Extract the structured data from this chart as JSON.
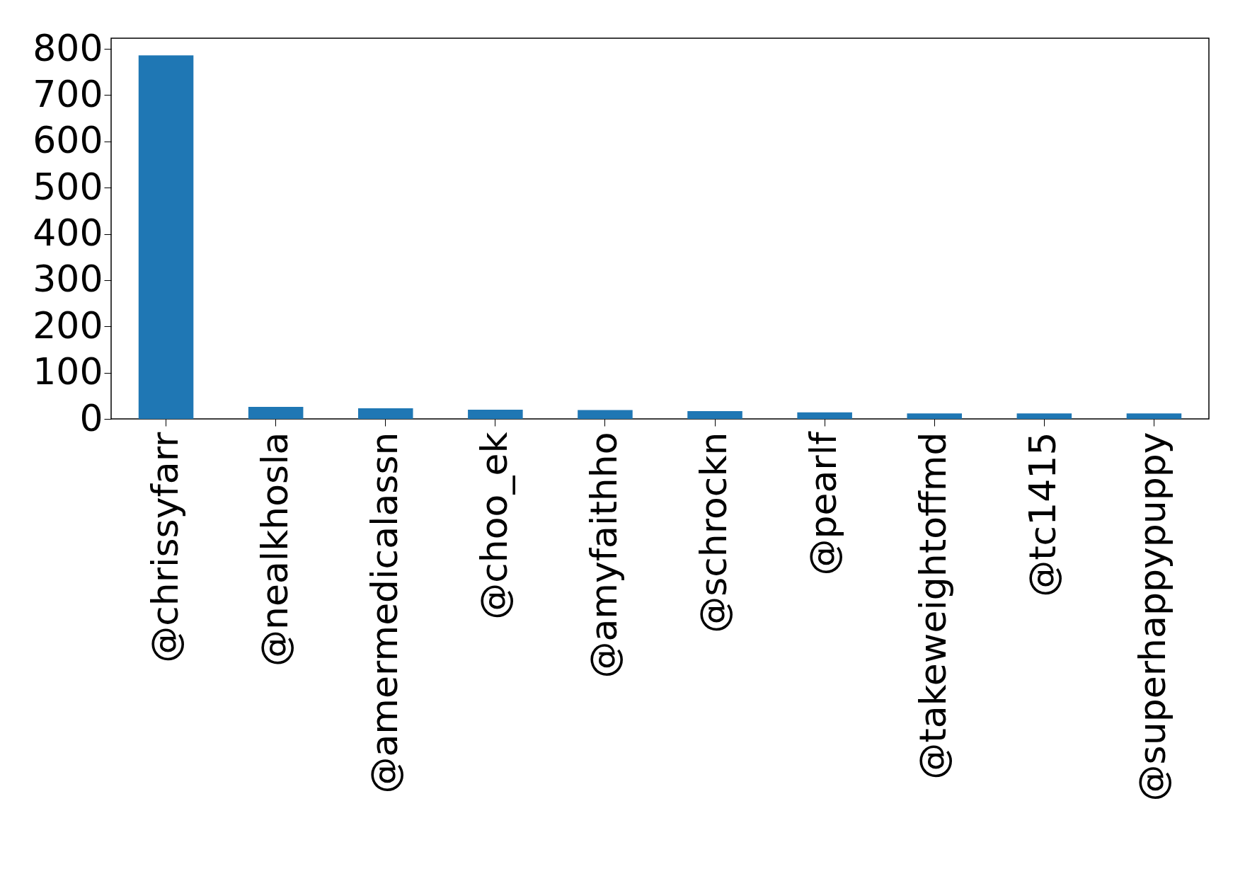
{
  "chart_data": {
    "type": "bar",
    "categories": [
      "@chrissyfarr",
      "@nealkhosla",
      "@amermedicalassn",
      "@choo_ek",
      "@amyfaithho",
      "@schrockn",
      "@pearlf",
      "@takeweightoffmd",
      "@tc1415",
      "@superhappypuppy"
    ],
    "values": [
      786,
      26,
      23,
      20,
      19,
      17,
      14,
      12,
      12,
      12
    ],
    "color": "#1f77b4",
    "ylim": [
      0,
      823
    ],
    "yticks": [
      0,
      100,
      200,
      300,
      400,
      500,
      600,
      700,
      800
    ],
    "grid": false
  }
}
